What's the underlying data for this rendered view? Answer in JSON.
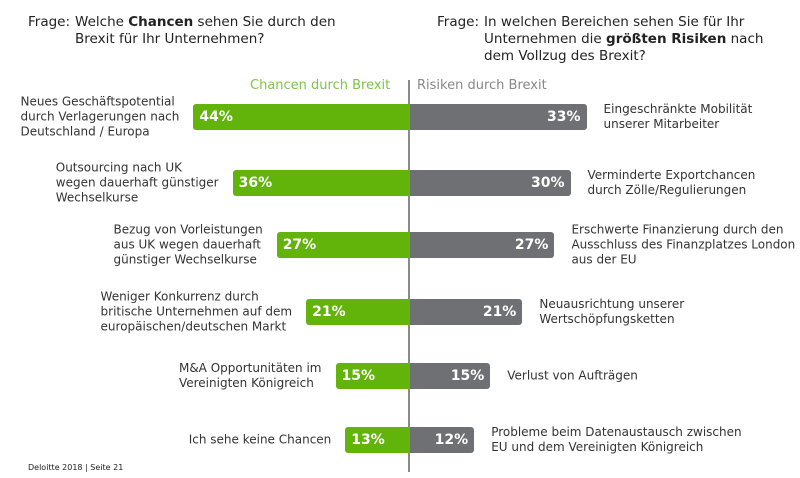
{
  "left_question": {
    "prefix": "Frage:",
    "line1_a": "Welche ",
    "line1_bold": "Chancen",
    "line1_b": " sehen Sie durch den",
    "line2": "Brexit für Ihr Unternehmen?"
  },
  "right_question": {
    "prefix": "Frage:",
    "line1": "In welchen Bereichen sehen Sie für Ihr",
    "line2_a": "Unternehmen die ",
    "line2_bold": "größten Risiken",
    "line2_b": " nach",
    "line3": "dem Vollzug des Brexit?"
  },
  "footer": "Deloitte 2018 | Seite 21",
  "colors": {
    "chancen": "#62b30a",
    "risiken": "#6e7073",
    "axis": "#8a8a8a"
  },
  "chart_data": {
    "type": "bar",
    "orientation": "horizontal-diverging",
    "unit": "%",
    "series": [
      {
        "name": "Chancen durch Brexit",
        "side": "left",
        "categories": [
          "Neues Geschäftspotential\ndurch Verlagerungen nach\nDeutschland / Europa",
          "Outsourcing nach UK\nwegen dauerhaft günstiger\nWechselkurse",
          "Bezug von Vorleistungen\naus UK wegen dauerhaft\ngünstiger Wechselkurse",
          "Weniger Konkurrenz durch\nbritische Unternehmen auf dem\neuropäischen/deutschen Markt",
          "M&A Opportunitäten im\nVereinigten Königreich",
          "Ich sehe keine Chancen"
        ],
        "values": [
          44,
          36,
          27,
          21,
          15,
          13
        ],
        "labels": [
          "44%",
          "36%",
          "27%",
          "21%",
          "15%",
          "13%"
        ]
      },
      {
        "name": "Risiken durch Brexit",
        "side": "right",
        "categories": [
          "Eingeschränkte Mobilität\nunserer Mitarbeiter",
          "Verminderte Exportchancen\ndurch Zölle/Regulierungen",
          "Erschwerte Finanzierung durch den\nAusschluss des Finanzplatzes London\naus der EU",
          "Neuausrichtung unserer\nWertschöpfungsketten",
          "Verlust von Aufträgen",
          "Probleme beim Datenaustausch zwischen\nEU und dem Vereinigten Königreich"
        ],
        "values": [
          33,
          30,
          27,
          21,
          15,
          12
        ],
        "labels": [
          "33%",
          "30%",
          "27%",
          "21%",
          "15%",
          "12%"
        ]
      }
    ]
  }
}
